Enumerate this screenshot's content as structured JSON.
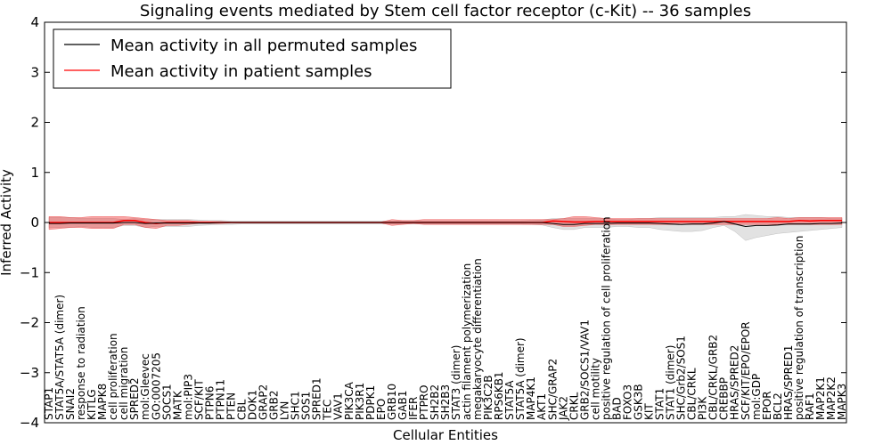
{
  "chart_data": {
    "type": "line",
    "title": "Signaling events mediated by Stem cell factor receptor (c-Kit) -- 36 samples",
    "xlabel": "Cellular Entities",
    "ylabel": "Inferred Activity",
    "ylim": [
      -4,
      4
    ],
    "yticks": [
      -4,
      -3,
      -2,
      -1,
      0,
      1,
      2,
      3,
      4
    ],
    "legend": {
      "position": "top-left",
      "entries": [
        {
          "label": "Mean activity in all permuted samples",
          "color": "#000000"
        },
        {
          "label": "Mean activity in patient samples",
          "color": "#ff0000"
        }
      ]
    },
    "categories": [
      "STAP1",
      "STAT5A/STAT5A (dimer)",
      "SNAI2",
      "response to radiation",
      "KITLG",
      "MAPK8",
      "cell proliferation",
      "cell migration",
      "SPRED2",
      "mol:Gleevec",
      "GO:0007205",
      "SOCS1",
      "MATK",
      "mol:PIP3",
      "SCF/KIT",
      "PTPN6",
      "PTPN11",
      "PTEN",
      "CBL",
      "DOK1",
      "GRAP2",
      "GRB2",
      "LYN",
      "SHC1",
      "SOS1",
      "SPRED1",
      "TEC",
      "VAV1",
      "PIK3CA",
      "PIK3R1",
      "PDPK1",
      "EPO",
      "GRB10",
      "GAB1",
      "IFER",
      "PTPRO",
      "SH2B2",
      "SH2B3",
      "STAT3 (dimer)",
      "actin filament polymerization",
      "megakaryocyte differentiation",
      "PIK3C2B",
      "RPS6KB1",
      "STAT5A",
      "STAT5A (dimer)",
      "MAP4K1",
      "AKT1",
      "SHC/GRAP2",
      "JAK2",
      "CRKL",
      "GRB2/SOCS1/VAV1",
      "cell motility",
      "positive regulation of cell proliferation",
      "BAD",
      "FOXO3",
      "GSK3B",
      "KIT",
      "STAT1",
      "STAT1 (dimer)",
      "SHC/Grb2/SOS1",
      "CBL/CRKL",
      "PI3K",
      "CBL/CRKL/GRB2",
      "CREBBP",
      "HRAS/SPRED2",
      "SCF/KIT/EPO/EPOR",
      "mol:GDP",
      "EPOR",
      "BCL2",
      "HRAS/SPRED1",
      "positive regulation of transcription",
      "RAF1",
      "MAP2K1",
      "MAP2K2",
      "MAPK3"
    ],
    "series": [
      {
        "name": "Mean activity in all permuted samples",
        "color": "#000000",
        "values": [
          -0.02,
          -0.02,
          -0.01,
          -0.01,
          -0.01,
          -0.01,
          -0.01,
          0.0,
          0.0,
          -0.02,
          -0.01,
          -0.01,
          -0.01,
          -0.01,
          -0.01,
          -0.01,
          0.0,
          0.0,
          0.0,
          0.0,
          0.0,
          0.0,
          0.0,
          0.0,
          0.0,
          0.0,
          0.0,
          0.0,
          0.0,
          0.0,
          0.0,
          0.0,
          0.0,
          0.0,
          0.0,
          0.0,
          0.0,
          0.0,
          0.0,
          0.0,
          0.0,
          0.0,
          0.0,
          0.0,
          0.0,
          0.0,
          0.0,
          -0.02,
          -0.04,
          -0.04,
          -0.02,
          -0.02,
          -0.02,
          -0.01,
          -0.01,
          -0.01,
          -0.01,
          -0.02,
          -0.03,
          -0.04,
          -0.03,
          -0.03,
          -0.01,
          0.02,
          -0.03,
          -0.08,
          -0.06,
          -0.06,
          -0.05,
          -0.03,
          -0.03,
          -0.03,
          -0.02,
          -0.02,
          -0.01
        ],
        "band_low": [
          -0.1,
          -0.1,
          -0.1,
          -0.08,
          -0.1,
          -0.1,
          -0.1,
          -0.06,
          -0.06,
          -0.1,
          -0.08,
          -0.08,
          -0.08,
          -0.08,
          -0.06,
          -0.05,
          -0.04,
          -0.04,
          -0.03,
          -0.03,
          -0.03,
          -0.03,
          -0.03,
          -0.03,
          -0.03,
          -0.03,
          -0.03,
          -0.03,
          -0.03,
          -0.03,
          -0.03,
          -0.03,
          -0.03,
          -0.03,
          -0.03,
          -0.03,
          -0.03,
          -0.03,
          -0.03,
          -0.03,
          -0.03,
          -0.03,
          -0.03,
          -0.03,
          -0.03,
          -0.04,
          -0.05,
          -0.1,
          -0.14,
          -0.14,
          -0.1,
          -0.1,
          -0.1,
          -0.08,
          -0.08,
          -0.1,
          -0.1,
          -0.14,
          -0.16,
          -0.18,
          -0.18,
          -0.16,
          -0.1,
          -0.06,
          -0.18,
          -0.36,
          -0.3,
          -0.26,
          -0.22,
          -0.2,
          -0.18,
          -0.16,
          -0.14,
          -0.12,
          -0.1
        ],
        "band_high": [
          0.1,
          0.1,
          0.1,
          0.08,
          0.08,
          0.08,
          0.08,
          0.06,
          0.08,
          0.06,
          0.06,
          0.06,
          0.06,
          0.06,
          0.05,
          0.04,
          0.04,
          0.03,
          0.03,
          0.03,
          0.03,
          0.03,
          0.03,
          0.03,
          0.03,
          0.03,
          0.03,
          0.03,
          0.03,
          0.03,
          0.03,
          0.03,
          0.03,
          0.03,
          0.03,
          0.03,
          0.03,
          0.03,
          0.03,
          0.03,
          0.03,
          0.03,
          0.03,
          0.03,
          0.03,
          0.04,
          0.05,
          0.08,
          0.08,
          0.08,
          0.08,
          0.08,
          0.08,
          0.06,
          0.06,
          0.08,
          0.08,
          0.1,
          0.1,
          0.1,
          0.1,
          0.1,
          0.1,
          0.12,
          0.12,
          0.16,
          0.14,
          0.12,
          0.12,
          0.1,
          0.1,
          0.1,
          0.1,
          0.08,
          0.08
        ]
      },
      {
        "name": "Mean activity in patient samples",
        "color": "#ff0000",
        "values": [
          0.0,
          0.0,
          0.0,
          0.0,
          0.0,
          0.0,
          0.0,
          0.04,
          0.04,
          0.0,
          -0.02,
          0.0,
          0.0,
          0.0,
          0.0,
          0.0,
          0.0,
          0.0,
          0.0,
          0.0,
          0.0,
          0.0,
          0.0,
          0.0,
          0.0,
          0.0,
          0.0,
          0.0,
          0.0,
          0.0,
          0.0,
          0.0,
          0.0,
          0.0,
          0.0,
          0.0,
          0.0,
          0.0,
          0.0,
          0.0,
          0.0,
          0.0,
          0.0,
          0.0,
          0.0,
          0.0,
          0.0,
          0.03,
          0.02,
          0.01,
          0.01,
          0.02,
          0.02,
          0.02,
          0.02,
          0.02,
          0.02,
          0.02,
          0.02,
          0.02,
          0.02,
          0.02,
          0.02,
          0.02,
          0.02,
          0.02,
          0.02,
          0.02,
          0.02,
          0.02,
          0.04,
          0.03,
          0.04,
          0.04,
          0.04
        ],
        "band_low": [
          -0.14,
          -0.12,
          -0.1,
          -0.1,
          -0.12,
          -0.12,
          -0.12,
          -0.04,
          -0.04,
          -0.1,
          -0.12,
          -0.06,
          -0.06,
          -0.04,
          -0.02,
          -0.02,
          -0.02,
          -0.01,
          -0.01,
          -0.01,
          -0.01,
          -0.01,
          -0.01,
          -0.01,
          -0.01,
          -0.01,
          -0.01,
          -0.01,
          -0.01,
          -0.01,
          -0.01,
          -0.01,
          -0.06,
          -0.04,
          -0.02,
          -0.04,
          -0.04,
          -0.04,
          -0.04,
          -0.04,
          -0.04,
          -0.04,
          -0.04,
          -0.04,
          -0.04,
          -0.04,
          -0.04,
          -0.04,
          -0.08,
          -0.08,
          -0.06,
          -0.04,
          -0.04,
          -0.04,
          -0.04,
          -0.04,
          -0.04,
          -0.04,
          -0.04,
          -0.04,
          -0.04,
          -0.04,
          -0.04,
          -0.04,
          -0.04,
          -0.04,
          -0.04,
          -0.04,
          -0.04,
          -0.04,
          -0.04,
          -0.04,
          -0.04,
          -0.04,
          -0.04
        ],
        "band_high": [
          0.12,
          0.12,
          0.1,
          0.1,
          0.12,
          0.12,
          0.12,
          0.12,
          0.1,
          0.08,
          0.06,
          0.04,
          0.04,
          0.04,
          0.02,
          0.02,
          0.02,
          0.01,
          0.01,
          0.01,
          0.01,
          0.01,
          0.01,
          0.01,
          0.01,
          0.01,
          0.01,
          0.01,
          0.01,
          0.01,
          0.01,
          0.01,
          0.06,
          0.04,
          0.04,
          0.06,
          0.06,
          0.06,
          0.06,
          0.06,
          0.06,
          0.06,
          0.06,
          0.06,
          0.06,
          0.06,
          0.06,
          0.06,
          0.08,
          0.12,
          0.12,
          0.1,
          0.08,
          0.08,
          0.08,
          0.08,
          0.08,
          0.08,
          0.08,
          0.08,
          0.08,
          0.08,
          0.08,
          0.08,
          0.08,
          0.08,
          0.08,
          0.08,
          0.1,
          0.08,
          0.1,
          0.1,
          0.1,
          0.1,
          0.1
        ]
      }
    ]
  }
}
